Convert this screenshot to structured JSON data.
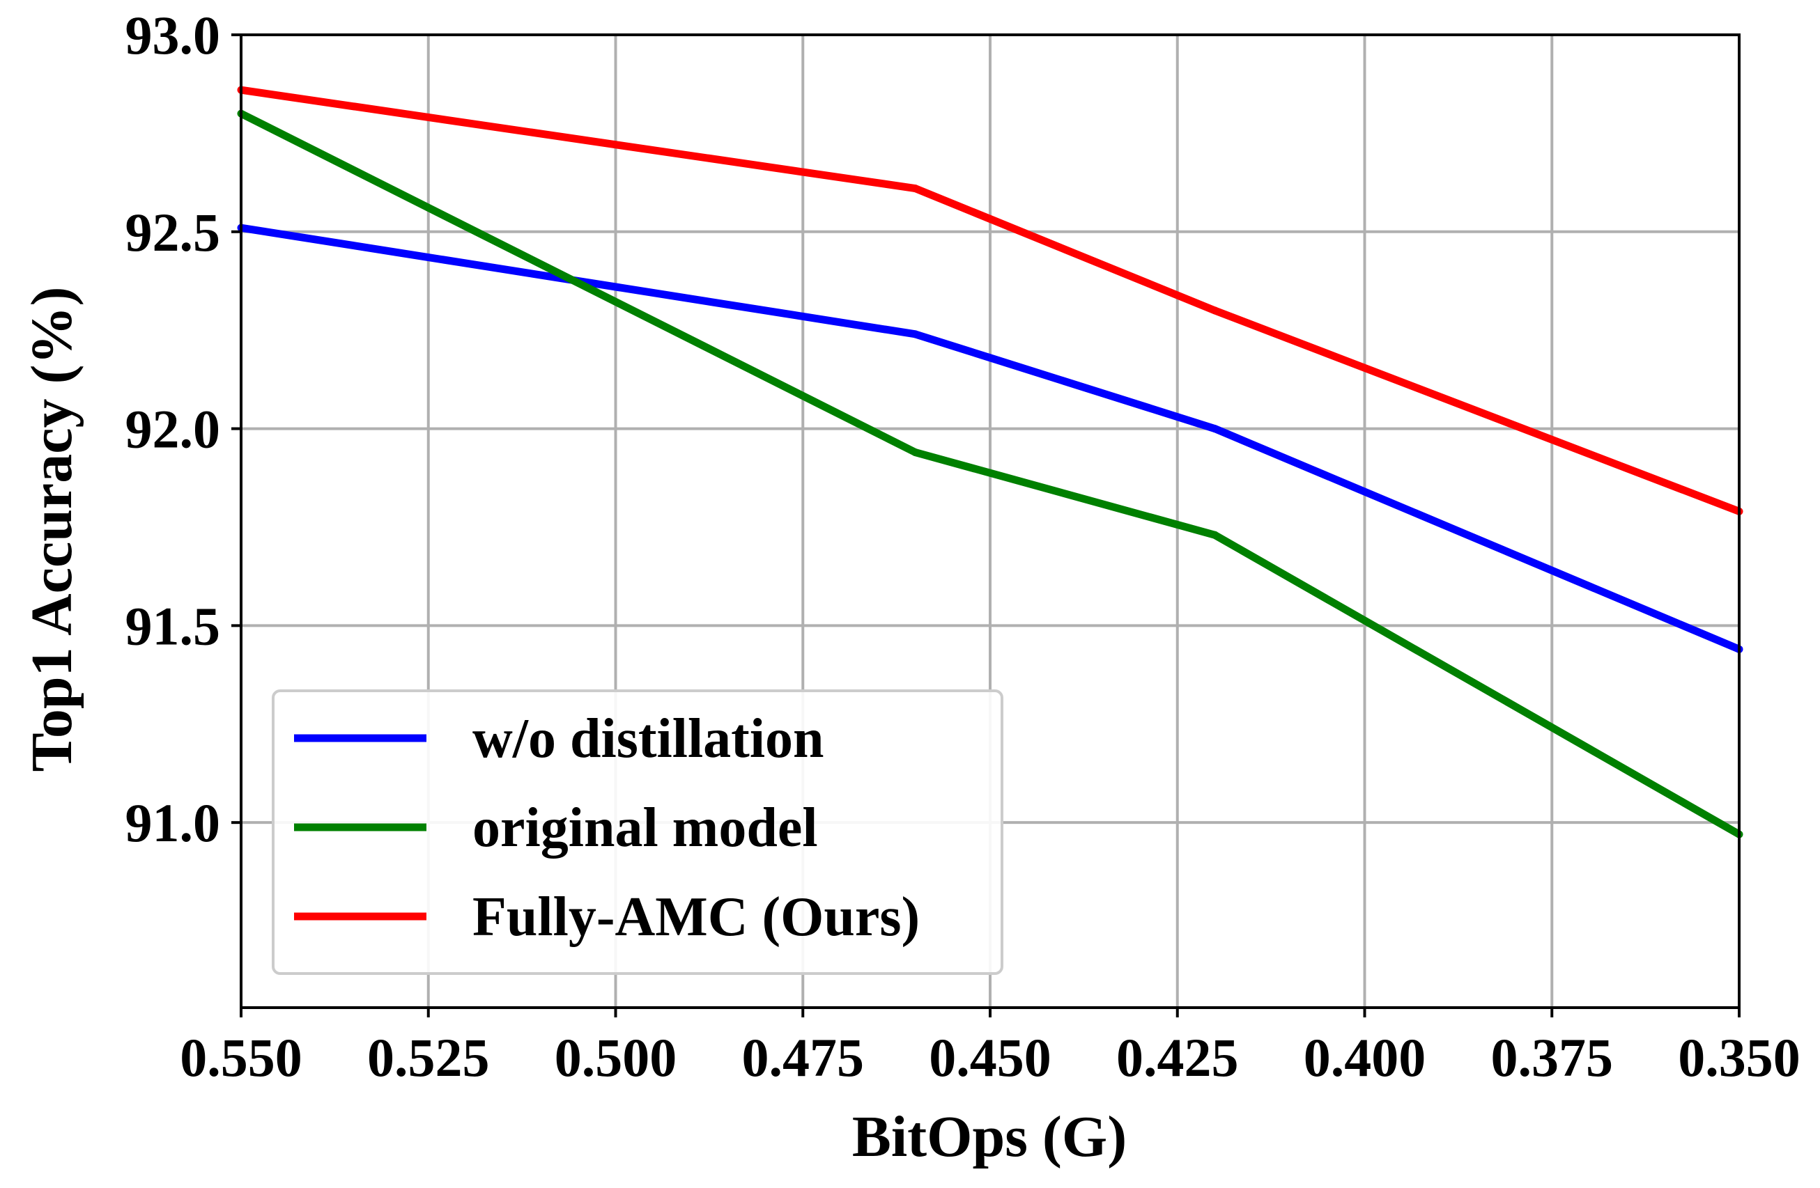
{
  "chart_data": {
    "type": "line",
    "title": "",
    "xlabel": "BitOps (G)",
    "ylabel": "Top1 Accuracy (%)",
    "xlim": [
      0.55,
      0.35
    ],
    "x_inverted": true,
    "ylim": [
      90.53,
      93.0
    ],
    "grid": true,
    "x_ticks": [
      0.55,
      0.525,
      0.5,
      0.475,
      0.45,
      0.425,
      0.4,
      0.375,
      0.35
    ],
    "x_tick_labels": [
      "0.550",
      "0.525",
      "0.500",
      "0.475",
      "0.450",
      "0.425",
      "0.400",
      "0.375",
      "0.350"
    ],
    "y_ticks": [
      91.0,
      91.5,
      92.0,
      92.5,
      93.0
    ],
    "y_tick_labels": [
      "91.0",
      "91.5",
      "92.0",
      "92.5",
      "93.0"
    ],
    "legend_position": "lower-left",
    "series": [
      {
        "name": "w/o distillation",
        "color": "#0000ff",
        "x": [
          0.55,
          0.46,
          0.42,
          0.35
        ],
        "y": [
          92.51,
          92.24,
          92.0,
          91.44
        ]
      },
      {
        "name": "original model",
        "color": "#008000",
        "x": [
          0.55,
          0.46,
          0.42,
          0.35
        ],
        "y": [
          92.8,
          91.94,
          91.73,
          90.97
        ]
      },
      {
        "name": "Fully-AMC (Ours)",
        "color": "#ff0000",
        "x": [
          0.55,
          0.46,
          0.42,
          0.35
        ],
        "y": [
          92.86,
          92.61,
          92.3,
          91.79
        ]
      }
    ]
  }
}
